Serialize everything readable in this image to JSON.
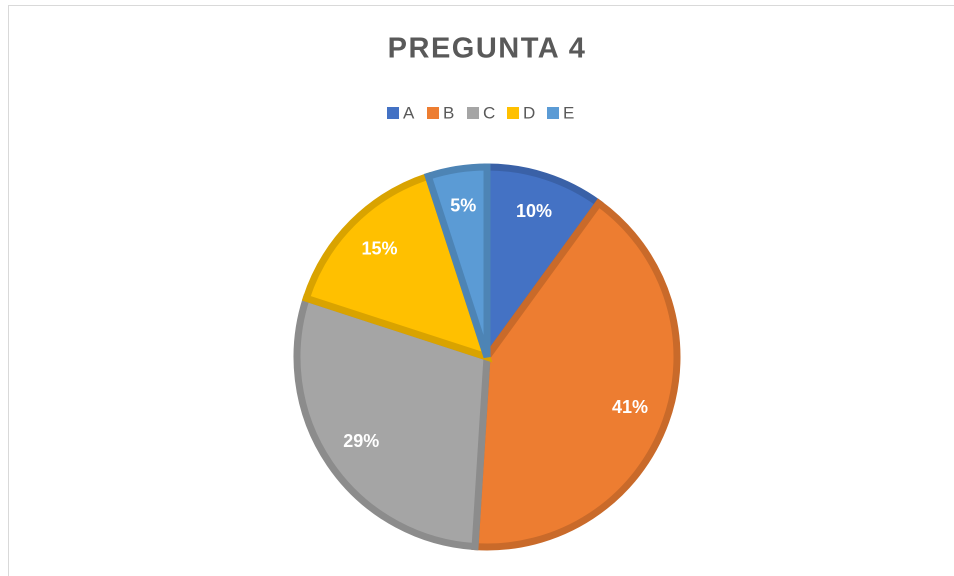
{
  "chart_data": {
    "type": "pie",
    "title": "PREGUNTA 4",
    "categories": [
      "A",
      "B",
      "C",
      "D",
      "E"
    ],
    "values": [
      10,
      41,
      29,
      15,
      5
    ],
    "value_labels": [
      "10%",
      "41%",
      "29%",
      "15%",
      "5%"
    ],
    "colors": [
      "#4472c4",
      "#ed7d31",
      "#a5a5a5",
      "#ffc000",
      "#5b9bd5"
    ],
    "legend": "top"
  }
}
